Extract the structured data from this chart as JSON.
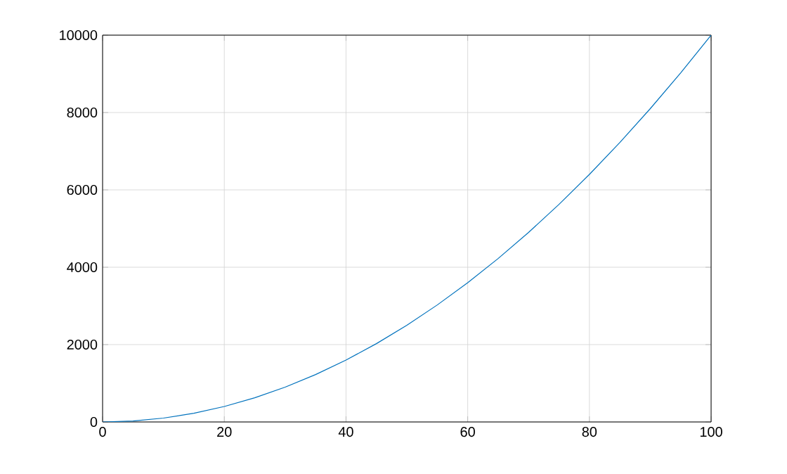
{
  "chart_data": {
    "type": "line",
    "x": [
      0,
      5,
      10,
      15,
      20,
      25,
      30,
      35,
      40,
      45,
      50,
      55,
      60,
      65,
      70,
      75,
      80,
      85,
      90,
      95,
      100
    ],
    "values": [
      0,
      25,
      100,
      225,
      400,
      625,
      900,
      1225,
      1600,
      2025,
      2500,
      3025,
      3600,
      4225,
      4900,
      5625,
      6400,
      7225,
      8100,
      9025,
      10000
    ],
    "color": "#0072bd",
    "xlim": [
      0,
      100
    ],
    "ylim": [
      0,
      10000
    ],
    "xticks": [
      0,
      20,
      40,
      60,
      80,
      100
    ],
    "yticks": [
      0,
      2000,
      4000,
      6000,
      8000,
      10000
    ],
    "grid": true,
    "line_style": "solid"
  }
}
